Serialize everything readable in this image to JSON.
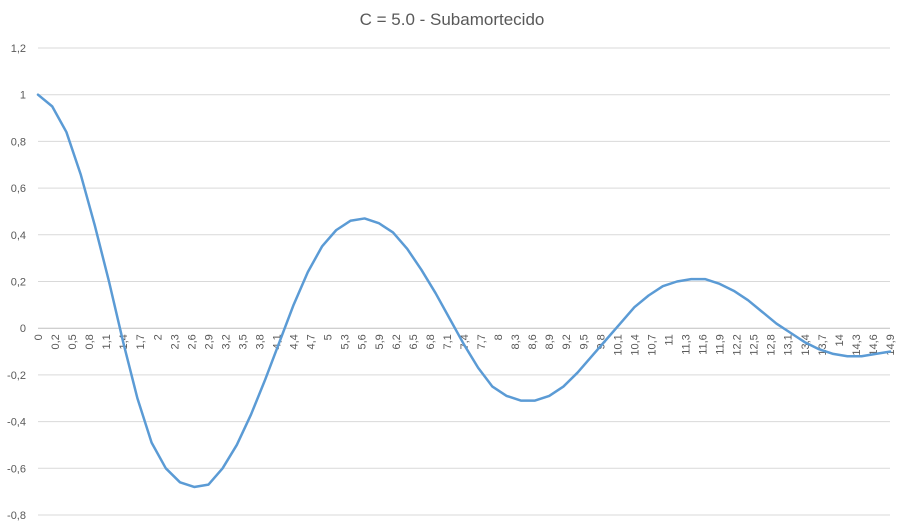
{
  "chart_data": {
    "type": "line",
    "title": "C = 5.0 - Subamortecido",
    "xlabel": "",
    "ylabel": "",
    "ylim": [
      -0.8,
      1.2
    ],
    "y_ticks": [
      "-0,8",
      "-0,6",
      "-0,4",
      "-0,2",
      "0",
      "0,2",
      "0,4",
      "0,6",
      "0,8",
      "1",
      "1,2"
    ],
    "x_tick_labels": [
      "0",
      "0,2",
      "0,5",
      "0,8",
      "1,1",
      "1,4",
      "1,7",
      "2",
      "2,3",
      "2,6",
      "2,9",
      "3,2",
      "3,5",
      "3,8",
      "4,1",
      "4,4",
      "4,7",
      "5",
      "5,3",
      "5,6",
      "5,9",
      "6,2",
      "6,5",
      "6,8",
      "7,1",
      "7,4",
      "7,7",
      "8",
      "8,3",
      "8,6",
      "8,9",
      "9,2",
      "9,5",
      "9,8",
      "10,1",
      "10,4",
      "10,7",
      "11",
      "11,3",
      "11,6",
      "11,9",
      "12,2",
      "12,5",
      "12,8",
      "13,1",
      "13,4",
      "13,7",
      "14",
      "14,3",
      "14,6",
      "14,9"
    ],
    "grid": true,
    "legend": "none",
    "series": [
      {
        "color": "#5B9BD5",
        "x": [
          0,
          0.25,
          0.5,
          0.75,
          1,
          1.25,
          1.5,
          1.75,
          2,
          2.25,
          2.5,
          2.75,
          3,
          3.25,
          3.5,
          3.75,
          4,
          4.25,
          4.5,
          4.75,
          5,
          5.25,
          5.5,
          5.75,
          6,
          6.25,
          6.5,
          6.75,
          7,
          7.25,
          7.5,
          7.75,
          8,
          8.25,
          8.5,
          8.75,
          9,
          9.25,
          9.5,
          9.75,
          10,
          10.25,
          10.5,
          10.75,
          11,
          11.25,
          11.5,
          11.75,
          12,
          12.25,
          12.5,
          12.75,
          13,
          13.25,
          13.5,
          13.75,
          14,
          14.25,
          14.5,
          14.75,
          15
        ],
        "y": [
          1,
          0.95,
          0.84,
          0.66,
          0.44,
          0.2,
          -0.06,
          -0.3,
          -0.49,
          -0.6,
          -0.66,
          -0.68,
          -0.67,
          -0.6,
          -0.5,
          -0.37,
          -0.22,
          -0.06,
          0.1,
          0.24,
          0.35,
          0.42,
          0.46,
          0.47,
          0.45,
          0.41,
          0.34,
          0.25,
          0.15,
          0.04,
          -0.07,
          -0.17,
          -0.25,
          -0.29,
          -0.31,
          -0.31,
          -0.29,
          -0.25,
          -0.19,
          -0.12,
          -0.05,
          0.02,
          0.09,
          0.14,
          0.18,
          0.2,
          0.21,
          0.21,
          0.19,
          0.16,
          0.12,
          0.07,
          0.02,
          -0.02,
          -0.06,
          -0.09,
          -0.11,
          -0.12,
          -0.12,
          -0.11,
          -0.1
        ]
      }
    ]
  }
}
